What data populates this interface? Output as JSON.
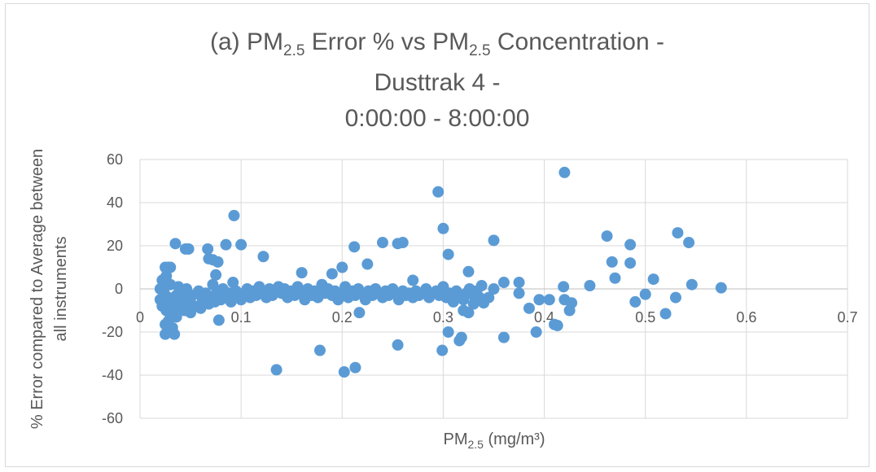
{
  "chart_data": {
    "type": "scatter",
    "title_lines": [
      [
        "(a) PM",
        "2.5",
        "  Error % vs PM",
        "2.5",
        " Concentration -"
      ],
      [
        "Dusttrak 4 -"
      ],
      [
        "0:00:00 - 8:00:00"
      ]
    ],
    "xlabel": {
      "main": "PM",
      "sub": "2.5",
      "tail": " (mg/m³)"
    },
    "ylabel_lines": [
      "% Error compared to Average between",
      "all instruments"
    ],
    "xlim": [
      0,
      0.7
    ],
    "ylim": [
      -60,
      60
    ],
    "xticks": [
      0,
      0.1,
      0.2,
      0.3,
      0.4,
      0.5,
      0.6,
      0.7
    ],
    "xtick_labels": [
      "0",
      "0.1",
      "0.2",
      "0.3",
      "0.4",
      "0.5",
      "0.6",
      "0.7"
    ],
    "yticks": [
      -60,
      -40,
      -20,
      0,
      20,
      40,
      60
    ],
    "ytick_labels": [
      "-60",
      "-40",
      "-20",
      "0",
      "20",
      "40",
      "60"
    ],
    "grid": true,
    "marker_color": "#5b9bd5",
    "points": [
      [
        0.42,
        54.0
      ],
      [
        0.295,
        45.0
      ],
      [
        0.093,
        34.0
      ],
      [
        0.3,
        28.0
      ],
      [
        0.532,
        26.0
      ],
      [
        0.462,
        24.5
      ],
      [
        0.35,
        22.5
      ],
      [
        0.035,
        21.0
      ],
      [
        0.085,
        20.5
      ],
      [
        0.1,
        20.5
      ],
      [
        0.24,
        21.5
      ],
      [
        0.255,
        21.0
      ],
      [
        0.26,
        21.5
      ],
      [
        0.485,
        20.5
      ],
      [
        0.543,
        21.5
      ],
      [
        0.045,
        18.5
      ],
      [
        0.048,
        18.5
      ],
      [
        0.067,
        18.5
      ],
      [
        0.212,
        19.5
      ],
      [
        0.305,
        16.0
      ],
      [
        0.068,
        14.0
      ],
      [
        0.072,
        13.5
      ],
      [
        0.077,
        12.5
      ],
      [
        0.122,
        15.0
      ],
      [
        0.225,
        11.5
      ],
      [
        0.467,
        12.5
      ],
      [
        0.485,
        12.0
      ],
      [
        0.025,
        10.0
      ],
      [
        0.028,
        10.0
      ],
      [
        0.03,
        10.0
      ],
      [
        0.2,
        10.0
      ],
      [
        0.325,
        8.0
      ],
      [
        0.19,
        7.0
      ],
      [
        0.16,
        7.5
      ],
      [
        0.075,
        6.5
      ],
      [
        0.47,
        5.0
      ],
      [
        0.508,
        4.5
      ],
      [
        0.27,
        4.0
      ],
      [
        0.36,
        3.0
      ],
      [
        0.375,
        3.0
      ],
      [
        0.546,
        2.0
      ],
      [
        0.445,
        1.5
      ],
      [
        0.575,
        0.5
      ],
      [
        0.419,
        1.0
      ],
      [
        0.35,
        0.0
      ],
      [
        0.338,
        1.5
      ],
      [
        0.028,
        -15.0
      ],
      [
        0.032,
        -18.0
      ],
      [
        0.025,
        -16.5
      ],
      [
        0.025,
        -21.0
      ],
      [
        0.034,
        -21.0
      ],
      [
        0.078,
        -14.5
      ],
      [
        0.217,
        -11.0
      ],
      [
        0.325,
        -11.0
      ],
      [
        0.32,
        -10.0
      ],
      [
        0.41,
        -16.5
      ],
      [
        0.413,
        -17.0
      ],
      [
        0.392,
        -20.0
      ],
      [
        0.305,
        -20.0
      ],
      [
        0.318,
        -22.5
      ],
      [
        0.316,
        -24.0
      ],
      [
        0.36,
        -22.5
      ],
      [
        0.255,
        -26.0
      ],
      [
        0.299,
        -28.5
      ],
      [
        0.178,
        -28.5
      ],
      [
        0.135,
        -37.5
      ],
      [
        0.202,
        -38.5
      ],
      [
        0.213,
        -36.5
      ],
      [
        0.52,
        -11.5
      ],
      [
        0.53,
        -4.0
      ],
      [
        0.49,
        -6.0
      ],
      [
        0.5,
        -2.5
      ],
      [
        0.425,
        -10.0
      ],
      [
        0.427,
        -6.5
      ],
      [
        0.42,
        -5.0
      ],
      [
        0.405,
        -5.0
      ],
      [
        0.395,
        -5.0
      ],
      [
        0.385,
        -9.0
      ],
      [
        0.375,
        -2.0
      ],
      [
        0.345,
        -4.0
      ],
      [
        0.33,
        -7.0
      ],
      [
        0.34,
        -6.5
      ],
      [
        0.02,
        -5.0
      ],
      [
        0.02,
        0.0
      ],
      [
        0.022,
        4.0
      ],
      [
        0.022,
        -8.0
      ],
      [
        0.024,
        -2.0
      ],
      [
        0.026,
        -10.0
      ],
      [
        0.026,
        6.0
      ],
      [
        0.028,
        -4.0
      ],
      [
        0.03,
        -12.0
      ],
      [
        0.03,
        2.0
      ],
      [
        0.032,
        -6.0
      ],
      [
        0.034,
        -9.0
      ],
      [
        0.036,
        -3.0
      ],
      [
        0.036,
        -13.0
      ],
      [
        0.038,
        1.0
      ],
      [
        0.04,
        -8.0
      ],
      [
        0.04,
        -5.0
      ],
      [
        0.042,
        -2.0
      ],
      [
        0.044,
        -10.0
      ],
      [
        0.046,
        0.0
      ],
      [
        0.048,
        -6.0
      ],
      [
        0.05,
        -11.0
      ],
      [
        0.052,
        -3.0
      ],
      [
        0.055,
        -8.0
      ],
      [
        0.058,
        -1.0
      ],
      [
        0.06,
        -9.0
      ],
      [
        0.062,
        -5.0
      ],
      [
        0.065,
        -2.0
      ],
      [
        0.068,
        -7.0
      ],
      [
        0.07,
        -4.0
      ],
      [
        0.072,
        2.0
      ],
      [
        0.074,
        -6.0
      ],
      [
        0.076,
        -1.0
      ],
      [
        0.078,
        -3.0
      ],
      [
        0.08,
        -5.0
      ],
      [
        0.082,
        0.0
      ],
      [
        0.085,
        -4.0
      ],
      [
        0.088,
        -2.0
      ],
      [
        0.09,
        -6.0
      ],
      [
        0.092,
        3.0
      ],
      [
        0.095,
        -1.0
      ],
      [
        0.098,
        -3.0
      ],
      [
        0.1,
        -5.0
      ],
      [
        0.103,
        -2.0
      ],
      [
        0.106,
        0.0
      ],
      [
        0.109,
        -4.0
      ],
      [
        0.112,
        -1.0
      ],
      [
        0.115,
        -3.0
      ],
      [
        0.118,
        1.0
      ],
      [
        0.12,
        -2.0
      ],
      [
        0.125,
        -4.0
      ],
      [
        0.128,
        0.0
      ],
      [
        0.131,
        -3.0
      ],
      [
        0.134,
        -1.0
      ],
      [
        0.137,
        1.0
      ],
      [
        0.14,
        -2.0
      ],
      [
        0.143,
        0.0
      ],
      [
        0.146,
        -4.0
      ],
      [
        0.15,
        -1.0
      ],
      [
        0.153,
        -3.0
      ],
      [
        0.156,
        1.0
      ],
      [
        0.16,
        -2.0
      ],
      [
        0.163,
        -5.0
      ],
      [
        0.166,
        0.0
      ],
      [
        0.17,
        -3.0
      ],
      [
        0.173,
        -1.0
      ],
      [
        0.176,
        -4.0
      ],
      [
        0.18,
        2.0
      ],
      [
        0.183,
        -2.0
      ],
      [
        0.186,
        0.0
      ],
      [
        0.19,
        -3.0
      ],
      [
        0.193,
        -1.0
      ],
      [
        0.196,
        -5.0
      ],
      [
        0.2,
        -2.0
      ],
      [
        0.203,
        1.0
      ],
      [
        0.206,
        -4.0
      ],
      [
        0.21,
        -1.0
      ],
      [
        0.213,
        -3.0
      ],
      [
        0.216,
        0.0
      ],
      [
        0.22,
        -2.0
      ],
      [
        0.223,
        -5.0
      ],
      [
        0.226,
        -1.0
      ],
      [
        0.23,
        -3.0
      ],
      [
        0.233,
        0.0
      ],
      [
        0.236,
        -2.0
      ],
      [
        0.24,
        -4.0
      ],
      [
        0.243,
        -1.0
      ],
      [
        0.246,
        -3.0
      ],
      [
        0.25,
        0.0
      ],
      [
        0.253,
        -2.0
      ],
      [
        0.256,
        -5.0
      ],
      [
        0.26,
        -1.0
      ],
      [
        0.263,
        -3.0
      ],
      [
        0.266,
        -2.0
      ],
      [
        0.27,
        -4.0
      ],
      [
        0.273,
        -1.0
      ],
      [
        0.276,
        -3.0
      ],
      [
        0.28,
        -2.0
      ],
      [
        0.283,
        0.0
      ],
      [
        0.286,
        -4.0
      ],
      [
        0.29,
        -2.0
      ],
      [
        0.293,
        -1.0
      ],
      [
        0.296,
        -3.0
      ],
      [
        0.3,
        1.0
      ],
      [
        0.303,
        -4.0
      ],
      [
        0.306,
        -2.0
      ],
      [
        0.31,
        -6.0
      ],
      [
        0.313,
        -1.0
      ],
      [
        0.316,
        -3.0
      ],
      [
        0.32,
        -5.0
      ],
      [
        0.323,
        -2.0
      ],
      [
        0.326,
        0.0
      ],
      [
        0.33,
        -3.0
      ],
      [
        0.333,
        -1.0
      ],
      [
        0.336,
        -4.0
      ]
    ]
  }
}
